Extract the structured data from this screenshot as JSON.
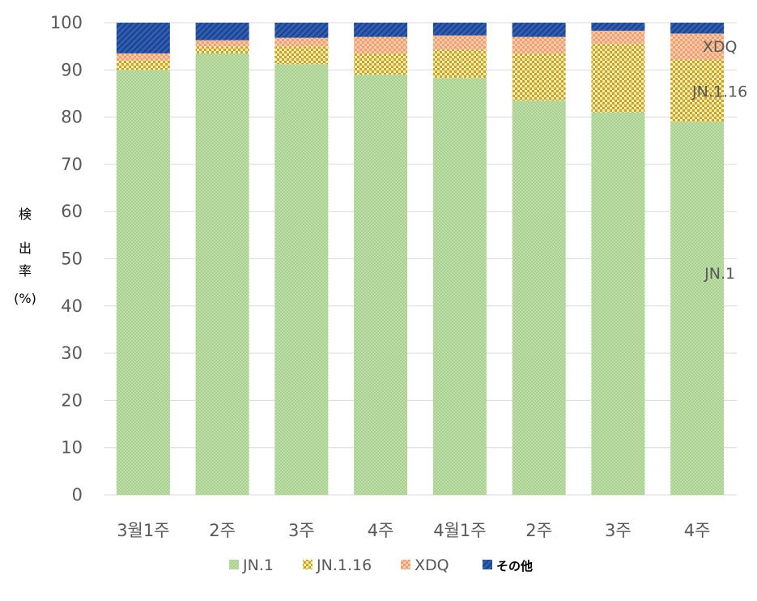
{
  "chart_data": {
    "type": "bar",
    "stacked": true,
    "ylabel_chars": [
      "検",
      "出",
      "率",
      "(%)"
    ],
    "ylim": [
      0,
      100
    ],
    "yticks": [
      0,
      10,
      20,
      30,
      40,
      50,
      60,
      70,
      80,
      90,
      100
    ],
    "grid": true,
    "legend_position": "bottom",
    "categories": [
      "3월1주",
      "2주",
      "3주",
      "4주",
      "4월1주",
      "2주",
      "3주",
      "4주"
    ],
    "series": [
      {
        "name": "JN.1",
        "color": "#a9d18e",
        "pattern": "dots",
        "values": [
          90.0,
          93.5,
          91.2,
          89.0,
          88.3,
          83.5,
          81.0,
          79.0
        ]
      },
      {
        "name": "JN.1.16",
        "color": "#d9b534",
        "pattern": "checker",
        "values": [
          2.0,
          1.5,
          3.8,
          4.5,
          6.0,
          10.0,
          14.5,
          13.2
        ]
      },
      {
        "name": "XDQ",
        "color": "#f4b183",
        "pattern": "checker",
        "values": [
          1.5,
          1.3,
          1.8,
          3.5,
          3.0,
          3.5,
          2.8,
          5.5
        ]
      },
      {
        "name": "その他",
        "color": "#2f5fb3",
        "pattern": "diagonal",
        "values": [
          6.5,
          3.7,
          3.2,
          3.0,
          2.7,
          3.0,
          1.7,
          2.3
        ]
      }
    ],
    "annotations": [
      {
        "text": "JN.1",
        "category_index": 7,
        "y": 47
      },
      {
        "text": "JN.1.16",
        "category_index": 7,
        "y": 85.5
      },
      {
        "text": "XDQ",
        "category_index": 7,
        "y": 95
      }
    ]
  }
}
